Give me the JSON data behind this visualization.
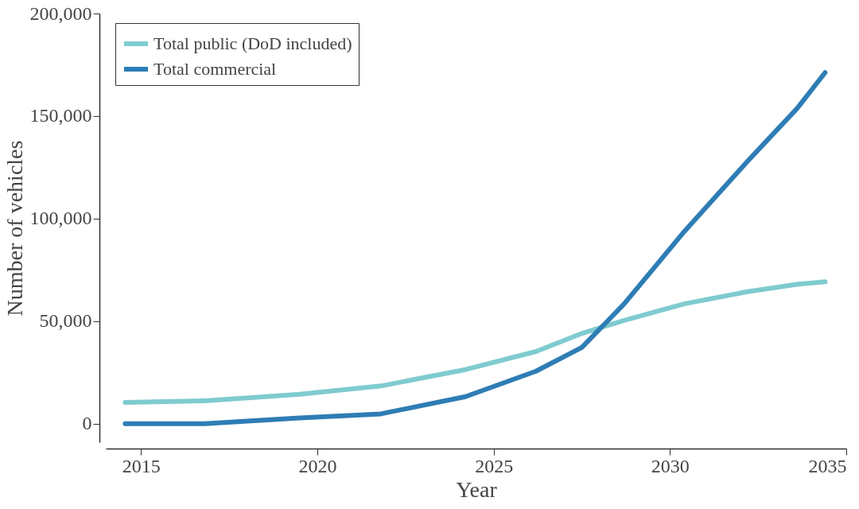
{
  "chart_data": {
    "type": "line",
    "xlabel": "Year",
    "ylabel": "Number of vehicles",
    "xlim": [
      2014,
      2035
    ],
    "xticks": [
      2015,
      2020,
      2025,
      2030,
      2035
    ],
    "ylim": [
      -9000,
      200000
    ],
    "yticks": [
      0,
      {
        "value": 50000,
        "label": "50,000"
      },
      {
        "value": 100000,
        "label": "100,000"
      },
      {
        "value": 150000,
        "label": "150,000"
      },
      {
        "value": 200000,
        "label": "200,000"
      }
    ],
    "grid": false,
    "legend": "top left",
    "marker": "none",
    "line_style": "solid",
    "series": [
      {
        "name": "Total public (DoD included)",
        "color": "#7fcbcf",
        "x": [
          2014.55,
          2016.8,
          2019.5,
          2021.8,
          2024.2,
          2026.2,
          2027.5,
          2028.7,
          2030.4,
          2032.2,
          2033.6,
          2034.4
        ],
        "values": [
          10400,
          11200,
          14400,
          18400,
          26400,
          35200,
          44000,
          50400,
          58400,
          64400,
          68000,
          69200
        ]
      },
      {
        "name": "Total commercial",
        "color": "#2e7db5",
        "x": [
          2014.55,
          2016.8,
          2019.5,
          2021.8,
          2024.2,
          2026.2,
          2027.5,
          2028.7,
          2030.4,
          2032.2,
          2033.6,
          2034.4
        ],
        "values": [
          0,
          0,
          2800,
          4800,
          13200,
          25600,
          37200,
          58400,
          93600,
          128000,
          153600,
          171200
        ]
      }
    ]
  }
}
